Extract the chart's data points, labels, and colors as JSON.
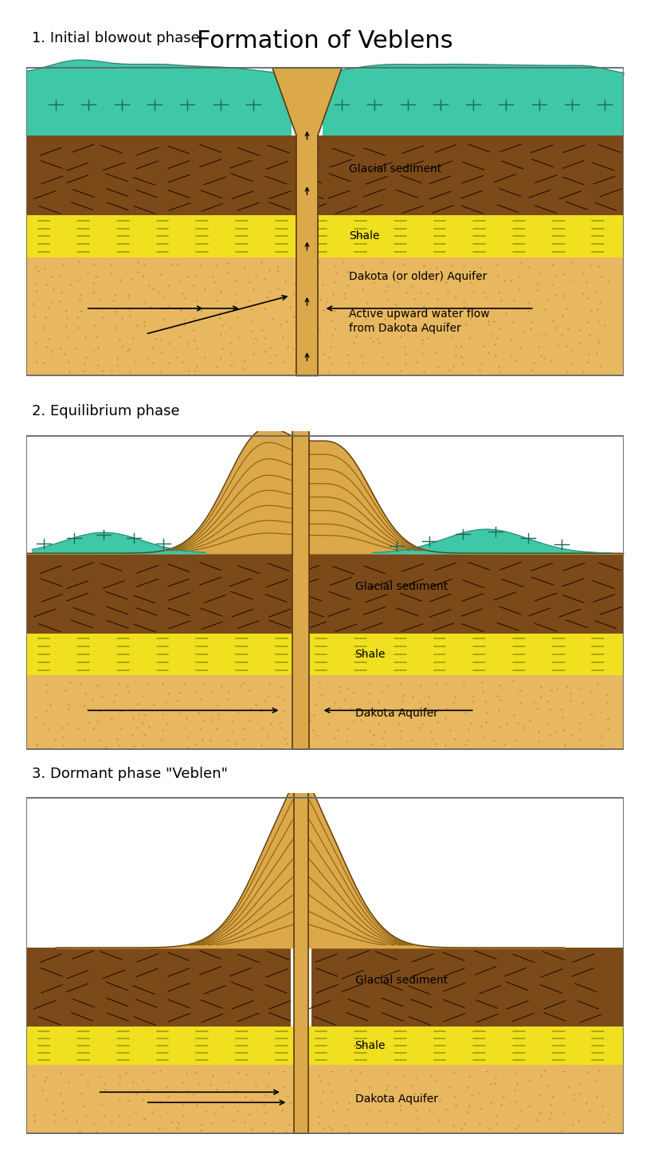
{
  "title": "Formation of Veblens",
  "phase_labels": [
    "1. Initial blowout phase",
    "2. Equilibrium phase",
    "3. Dormant phase \"Veblen\""
  ],
  "colors": {
    "background": "#ffffff",
    "glacial_sediment": "#7B4A18",
    "shale": "#F0E020",
    "aquifer": "#E8B860",
    "teal": "#3EC8A8",
    "teal_outline": "#2A8870",
    "teal_mark": "#1A6858",
    "pipe_fill": "#DBA84A",
    "pipe_outline": "#5A3A10",
    "contour_line": "#8B6010",
    "dark_outline": "#2A1A00",
    "shale_line": "#A0A000",
    "dot_color": "#C09040"
  }
}
